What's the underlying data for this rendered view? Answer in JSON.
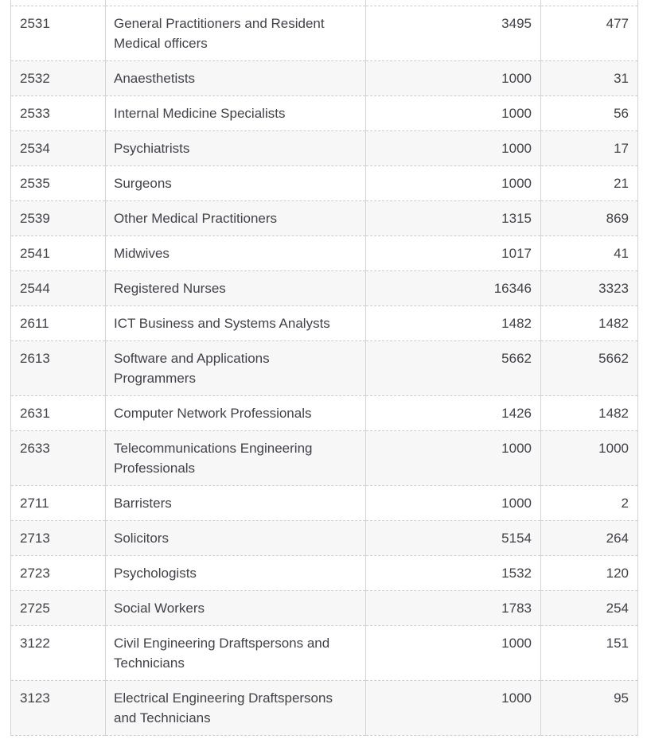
{
  "table": {
    "rows": [
      {
        "code": "2531",
        "occupation": "General Practitioners and Resident\nMedical officers",
        "value1": "3495",
        "value2": "477"
      },
      {
        "code": "2532",
        "occupation": "Anaesthetists",
        "value1": "1000",
        "value2": "31"
      },
      {
        "code": "2533",
        "occupation": "Internal Medicine Specialists",
        "value1": "1000",
        "value2": "56"
      },
      {
        "code": "2534",
        "occupation": "Psychiatrists",
        "value1": "1000",
        "value2": "17"
      },
      {
        "code": "2535",
        "occupation": "Surgeons",
        "value1": "1000",
        "value2": "21"
      },
      {
        "code": "2539",
        "occupation": "Other Medical Practitioners",
        "value1": "1315",
        "value2": "869"
      },
      {
        "code": "2541",
        "occupation": "Midwives",
        "value1": "1017",
        "value2": "41"
      },
      {
        "code": "2544",
        "occupation": "Registered Nurses",
        "value1": "16346",
        "value2": "3323"
      },
      {
        "code": "2611",
        "occupation": "ICT Business and Systems Analysts",
        "value1": "1482",
        "value2": "1482"
      },
      {
        "code": "2613",
        "occupation": "Software and Applications\nProgrammers",
        "value1": "5662",
        "value2": "5662"
      },
      {
        "code": "2631",
        "occupation": "Computer Network Professionals",
        "value1": "1426",
        "value2": "1482"
      },
      {
        "code": "2633",
        "occupation": "Telecommunications Engineering\nProfessionals",
        "value1": "1000",
        "value2": "1000"
      },
      {
        "code": "2711",
        "occupation": "Barristers",
        "value1": "1000",
        "value2": "2"
      },
      {
        "code": "2713",
        "occupation": "Solicitors",
        "value1": "5154",
        "value2": "264"
      },
      {
        "code": "2723",
        "occupation": "Psychologists",
        "value1": "1532",
        "value2": "120"
      },
      {
        "code": "2725",
        "occupation": "Social Workers",
        "value1": "1783",
        "value2": "254"
      },
      {
        "code": "3122",
        "occupation": "Civil Engineering Draftspersons and\nTechnicians",
        "value1": "1000",
        "value2": "151"
      },
      {
        "code": "3123",
        "occupation": "Electrical Engineering Draftspersons\nand Technicians",
        "value1": "1000",
        "value2": "95"
      }
    ]
  },
  "colors": {
    "row_alt_background": "#f7f7f7",
    "horizontal_border": "#cccccc",
    "vertical_border": "#d4d4d4",
    "text": "#404248"
  }
}
